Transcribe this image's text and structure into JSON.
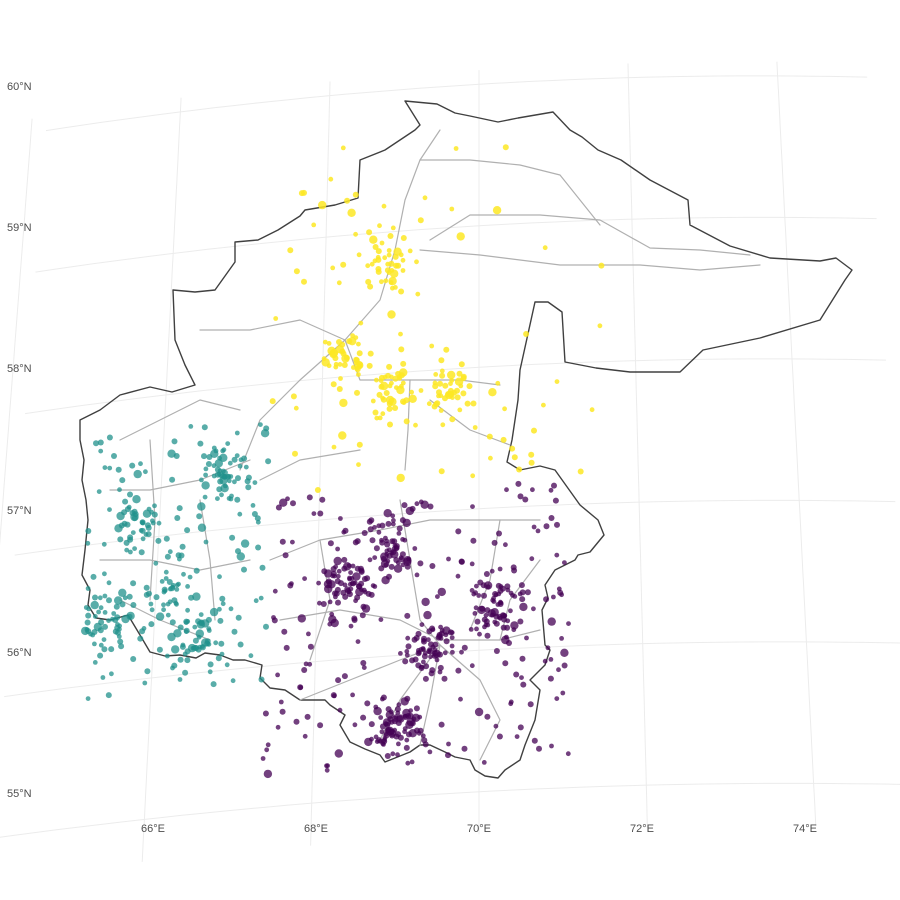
{
  "map": {
    "lat_labels": [
      "60°N",
      "59°N",
      "58°N",
      "57°N",
      "56°N",
      "55°N"
    ],
    "lon_labels": [
      "66°E",
      "68°E",
      "70°E",
      "72°E",
      "74°E"
    ],
    "lat_values": [
      60,
      59,
      58,
      57,
      56,
      55
    ],
    "lon_values": [
      66,
      68,
      70,
      72,
      74
    ],
    "grid": true,
    "colors": {
      "cluster_north": "#fde725",
      "cluster_west": "#21918c",
      "cluster_south": "#440154",
      "boundary": "#404040",
      "roads": "#b0b0b0",
      "graticule": "#ececec"
    },
    "clusters": [
      {
        "id": "north",
        "color": "#fde725",
        "count": 260,
        "hubs": [
          [
            68.3,
            58.1,
            14
          ],
          [
            68.9,
            57.9,
            10
          ],
          [
            69.6,
            57.85,
            8
          ],
          [
            68.75,
            58.8,
            6
          ]
        ]
      },
      {
        "id": "west",
        "color": "#21918c",
        "count": 340,
        "hubs": [
          [
            65.7,
            57.12,
            12
          ],
          [
            66.2,
            56.6,
            10
          ],
          [
            65.4,
            56.4,
            9
          ],
          [
            66.6,
            56.25,
            9
          ],
          [
            66.8,
            57.4,
            8
          ]
        ]
      },
      {
        "id": "south",
        "color": "#440154",
        "count": 520,
        "hubs": [
          [
            69.45,
            56.05,
            14
          ],
          [
            68.4,
            56.5,
            10
          ],
          [
            70.2,
            56.3,
            10
          ],
          [
            69.0,
            55.5,
            10
          ],
          [
            68.9,
            56.8,
            8
          ]
        ]
      }
    ]
  }
}
